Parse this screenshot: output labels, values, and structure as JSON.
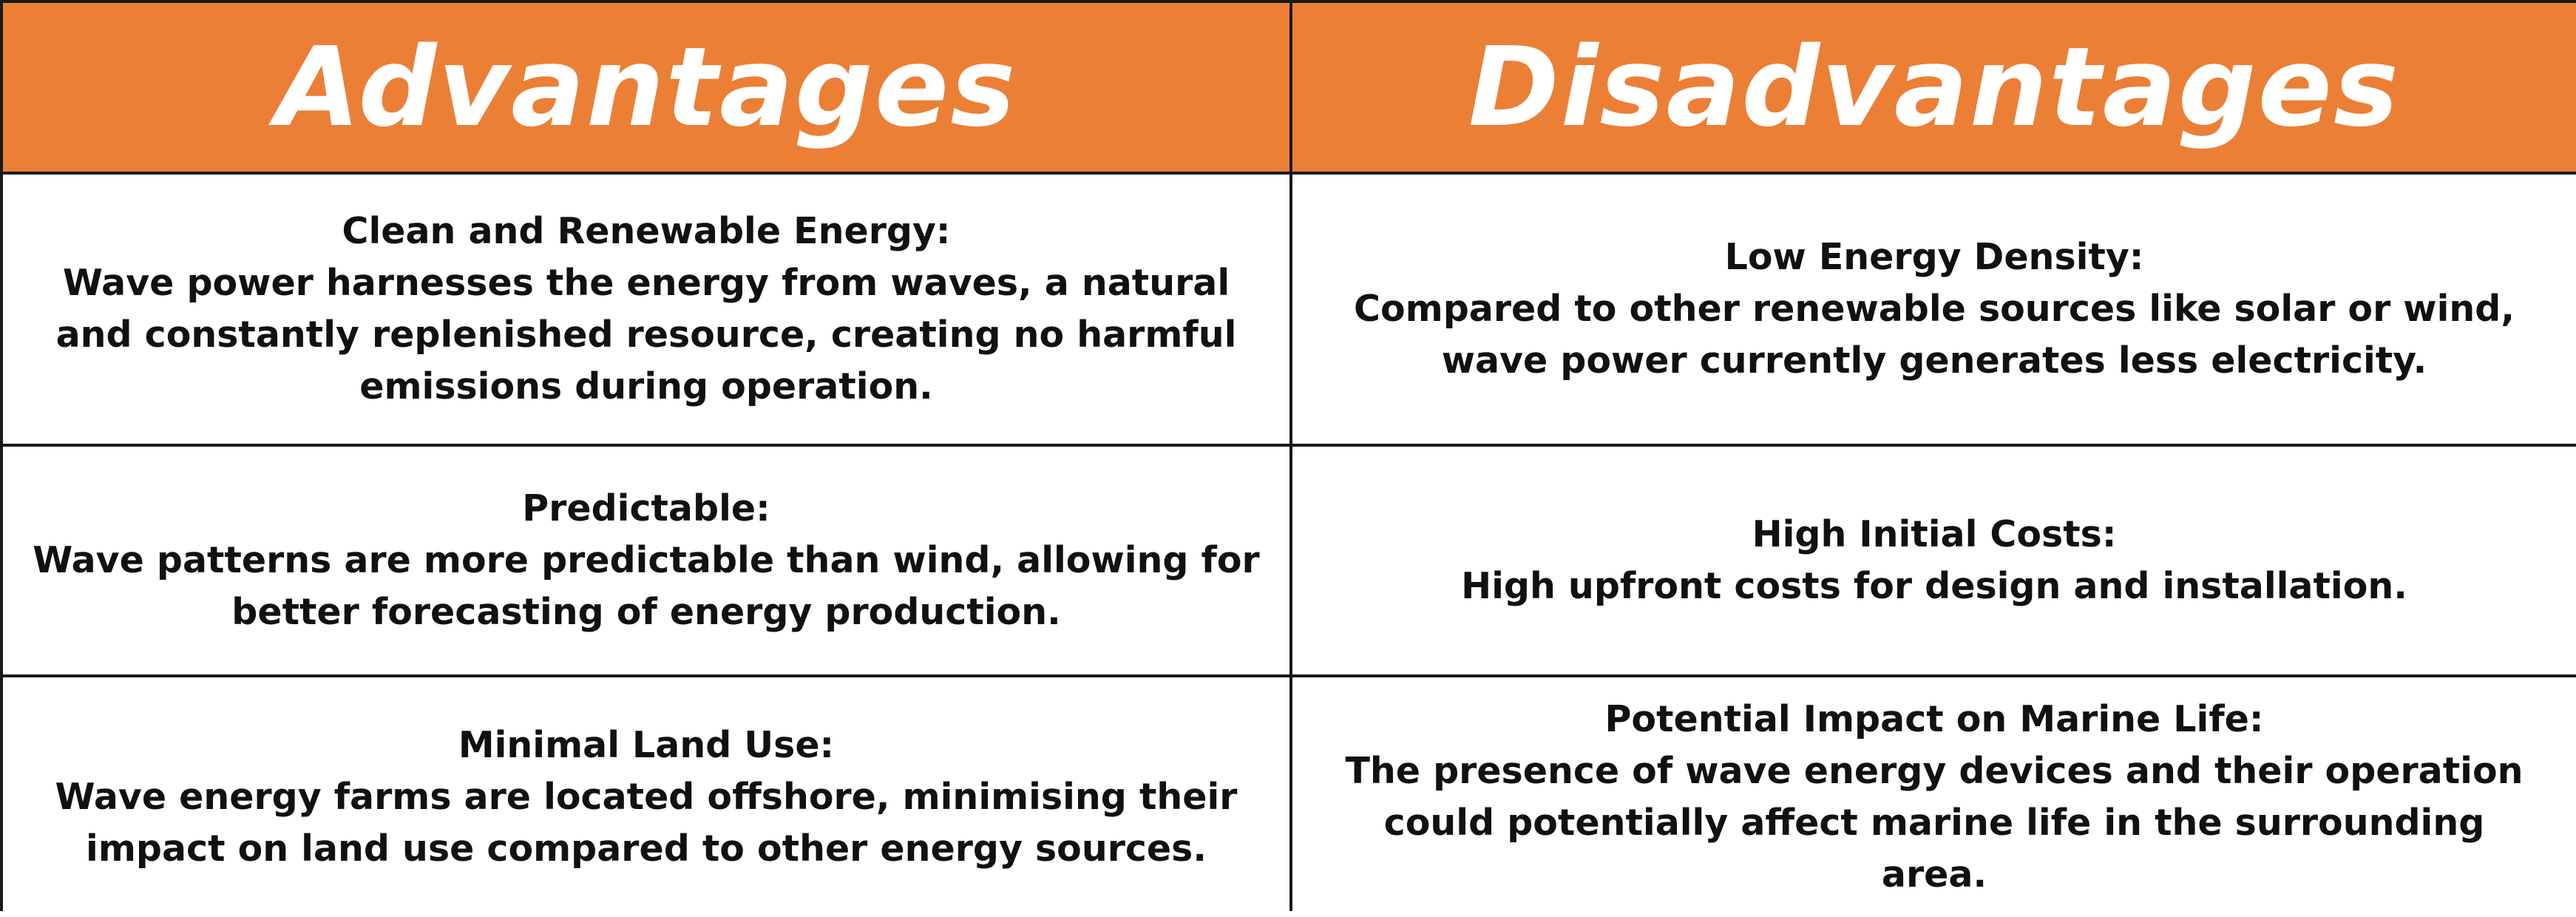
{
  "headers": {
    "advantages": "Advantages",
    "disadvantages": "Disadvantages"
  },
  "rows": [
    {
      "advantage": {
        "title": "Clean and Renewable Energy:",
        "body": "Wave power harnesses the energy from waves, a natural and constantly replenished resource, creating no harmful emissions during operation."
      },
      "disadvantage": {
        "title": "Low Energy Density:",
        "body": "Compared to other renewable sources like solar or wind, wave power currently generates less electricity."
      }
    },
    {
      "advantage": {
        "title": "Predictable:",
        "body": "Wave patterns are more predictable than wind, allowing for better forecasting of energy production."
      },
      "disadvantage": {
        "title": "High Initial Costs:",
        "body": "High upfront costs for design and installation."
      }
    },
    {
      "advantage": {
        "title": "Minimal Land Use:",
        "body": "Wave energy farms are located offshore, minimising their impact on land use compared to other energy sources."
      },
      "disadvantage": {
        "title": "Potential Impact on Marine Life:",
        "body": "The presence of wave energy devices and their operation could potentially affect marine life in the surrounding area."
      }
    }
  ],
  "colors": {
    "header_background": "#ec7f36",
    "header_text": "#ffffff",
    "border": "#1a1a1a",
    "cell_background": "#ffffff"
  }
}
